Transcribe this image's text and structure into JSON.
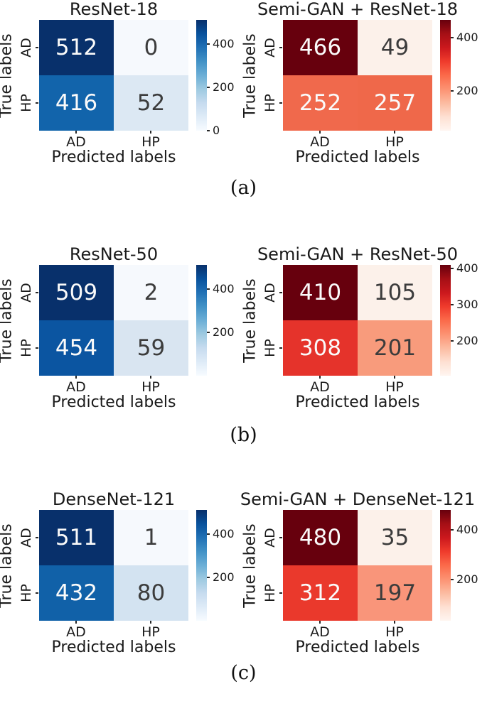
{
  "chart_data": [
    {
      "type": "heatmap",
      "title": "ResNet-18",
      "colormap": "Blues",
      "xlabel": "Predicted labels",
      "ylabel": "True labels",
      "x_categories": [
        "AD",
        "HP"
      ],
      "y_categories": [
        "AD",
        "HP"
      ],
      "values": [
        [
          512,
          0
        ],
        [
          416,
          52
        ]
      ],
      "vmin": 0,
      "vmax": 512,
      "colorbar_ticks": [
        0,
        200,
        400
      ],
      "colorbar_position": "right"
    },
    {
      "type": "heatmap",
      "title": "Semi-GAN + ResNet-18",
      "colormap": "Reds",
      "xlabel": "Predicted labels",
      "ylabel": "True labels",
      "x_categories": [
        "AD",
        "HP"
      ],
      "y_categories": [
        "AD",
        "HP"
      ],
      "values": [
        [
          466,
          49
        ],
        [
          252,
          257
        ]
      ],
      "vmin": 49,
      "vmax": 466,
      "colorbar_ticks": [
        200,
        400
      ],
      "colorbar_position": "right"
    },
    {
      "type": "heatmap",
      "title": "ResNet-50",
      "colormap": "Blues",
      "xlabel": "Predicted labels",
      "ylabel": "True labels",
      "x_categories": [
        "AD",
        "HP"
      ],
      "y_categories": [
        "AD",
        "HP"
      ],
      "values": [
        [
          509,
          2
        ],
        [
          454,
          59
        ]
      ],
      "vmin": 2,
      "vmax": 509,
      "colorbar_ticks": [
        200,
        400
      ],
      "colorbar_position": "right"
    },
    {
      "type": "heatmap",
      "title": "Semi-GAN + ResNet-50",
      "colormap": "Reds",
      "xlabel": "Predicted labels",
      "ylabel": "True labels",
      "x_categories": [
        "AD",
        "HP"
      ],
      "y_categories": [
        "AD",
        "HP"
      ],
      "values": [
        [
          410,
          105
        ],
        [
          308,
          201
        ]
      ],
      "vmin": 105,
      "vmax": 410,
      "colorbar_ticks": [
        200,
        300,
        400
      ],
      "colorbar_position": "right"
    },
    {
      "type": "heatmap",
      "title": "DenseNet-121",
      "colormap": "Blues",
      "xlabel": "Predicted labels",
      "ylabel": "True labels",
      "x_categories": [
        "AD",
        "HP"
      ],
      "y_categories": [
        "AD",
        "HP"
      ],
      "values": [
        [
          511,
          1
        ],
        [
          432,
          80
        ]
      ],
      "vmin": 1,
      "vmax": 511,
      "colorbar_ticks": [
        200,
        400
      ],
      "colorbar_position": "right"
    },
    {
      "type": "heatmap",
      "title": "Semi-GAN + DenseNet-121",
      "colormap": "Reds",
      "xlabel": "Predicted labels",
      "ylabel": "True labels",
      "x_categories": [
        "AD",
        "HP"
      ],
      "y_categories": [
        "AD",
        "HP"
      ],
      "values": [
        [
          480,
          35
        ],
        [
          312,
          197
        ]
      ],
      "vmin": 35,
      "vmax": 480,
      "colorbar_ticks": [
        200,
        400
      ],
      "colorbar_position": "right"
    }
  ],
  "colors": {
    "blues_max": "#08306b",
    "blues_min": "#f7fbff",
    "reds_max": "#67000d",
    "reds_min": "#fff5f0",
    "axis_text": "#1a1a1a"
  },
  "figures": [
    {
      "title": "ResNet-18",
      "ylabel": "True labels",
      "xlabel": "Predicted labels",
      "row_labels": [
        "AD",
        "HP"
      ],
      "col_labels": [
        "AD",
        "HP"
      ],
      "cells": [
        {
          "value": "512",
          "bg": "#08306b",
          "fg": "#fafafa"
        },
        {
          "value": "0",
          "bg": "#f6f9fd",
          "fg": "#3c3c3c"
        },
        {
          "value": "416",
          "bg": "#1264ab",
          "fg": "#fafafa"
        },
        {
          "value": "52",
          "bg": "#dce8f3",
          "fg": "#3c3c3c"
        }
      ],
      "colorbar_ticks": [
        {
          "label": "400",
          "bottom": "78.1%"
        },
        {
          "label": "200",
          "bottom": "39.1%"
        },
        {
          "label": "0",
          "bottom": "0%"
        }
      ]
    },
    {
      "title": "Semi-GAN + ResNet-18",
      "ylabel": "True labels",
      "xlabel": "Predicted labels",
      "row_labels": [
        "AD",
        "HP"
      ],
      "col_labels": [
        "AD",
        "HP"
      ],
      "cells": [
        {
          "value": "466",
          "bg": "#67000d",
          "fg": "#fafafa"
        },
        {
          "value": "49",
          "bg": "#fcf1ea",
          "fg": "#3c3c3c"
        },
        {
          "value": "252",
          "bg": "#f0694c",
          "fg": "#fafafa"
        },
        {
          "value": "257",
          "bg": "#ef684a",
          "fg": "#fafafa"
        }
      ],
      "colorbar_ticks": [
        {
          "label": "400",
          "bottom": "84.2%"
        },
        {
          "label": "200",
          "bottom": "36.2%"
        }
      ]
    },
    {
      "title": "ResNet-50",
      "ylabel": "True labels",
      "xlabel": "Predicted labels",
      "row_labels": [
        "AD",
        "HP"
      ],
      "col_labels": [
        "AD",
        "HP"
      ],
      "cells": [
        {
          "value": "509",
          "bg": "#08306b",
          "fg": "#fafafa"
        },
        {
          "value": "2",
          "bg": "#f6f9fd",
          "fg": "#3c3c3c"
        },
        {
          "value": "454",
          "bg": "#0b55a1",
          "fg": "#fafafa"
        },
        {
          "value": "59",
          "bg": "#d9e5f1",
          "fg": "#3c3c3c"
        }
      ],
      "colorbar_ticks": [
        {
          "label": "400",
          "bottom": "78.5%"
        },
        {
          "label": "200",
          "bottom": "39.1%"
        }
      ]
    },
    {
      "title": "Semi-GAN + ResNet-50",
      "ylabel": "True labels",
      "xlabel": "Predicted labels",
      "row_labels": [
        "AD",
        "HP"
      ],
      "col_labels": [
        "AD",
        "HP"
      ],
      "cells": [
        {
          "value": "410",
          "bg": "#67000d",
          "fg": "#fafafa"
        },
        {
          "value": "105",
          "bg": "#fcf1ea",
          "fg": "#3c3c3c"
        },
        {
          "value": "308",
          "bg": "#e5332b",
          "fg": "#fafafa"
        },
        {
          "value": "201",
          "bg": "#f89b7c",
          "fg": "#3c3c3c"
        }
      ],
      "colorbar_ticks": [
        {
          "label": "400",
          "bottom": "96.7%"
        },
        {
          "label": "300",
          "bottom": "63.9%"
        },
        {
          "label": "200",
          "bottom": "31.1%"
        }
      ]
    },
    {
      "title": "DenseNet-121",
      "ylabel": "True labels",
      "xlabel": "Predicted labels",
      "row_labels": [
        "AD",
        "HP"
      ],
      "col_labels": [
        "AD",
        "HP"
      ],
      "cells": [
        {
          "value": "511",
          "bg": "#08306b",
          "fg": "#fafafa"
        },
        {
          "value": "1",
          "bg": "#f6f9fd",
          "fg": "#3c3c3c"
        },
        {
          "value": "432",
          "bg": "#1161a8",
          "fg": "#fafafa"
        },
        {
          "value": "80",
          "bg": "#d3e3f1",
          "fg": "#3c3c3c"
        }
      ],
      "colorbar_ticks": [
        {
          "label": "400",
          "bottom": "78.2%"
        },
        {
          "label": "200",
          "bottom": "39.0%"
        }
      ]
    },
    {
      "title": "Semi-GAN + DenseNet-121",
      "ylabel": "True labels",
      "xlabel": "Predicted labels",
      "row_labels": [
        "AD",
        "HP"
      ],
      "col_labels": [
        "AD",
        "HP"
      ],
      "cells": [
        {
          "value": "480",
          "bg": "#67000d",
          "fg": "#fafafa"
        },
        {
          "value": "35",
          "bg": "#fcf1ea",
          "fg": "#3c3c3c"
        },
        {
          "value": "312",
          "bg": "#ea392c",
          "fg": "#fafafa"
        },
        {
          "value": "197",
          "bg": "#f9957a",
          "fg": "#3c3c3c"
        }
      ],
      "colorbar_ticks": [
        {
          "label": "400",
          "bottom": "82.0%"
        },
        {
          "label": "200",
          "bottom": "37.1%"
        }
      ]
    }
  ],
  "captions": [
    {
      "label": "(a)"
    },
    {
      "label": "(b)"
    },
    {
      "label": "(c)"
    }
  ]
}
